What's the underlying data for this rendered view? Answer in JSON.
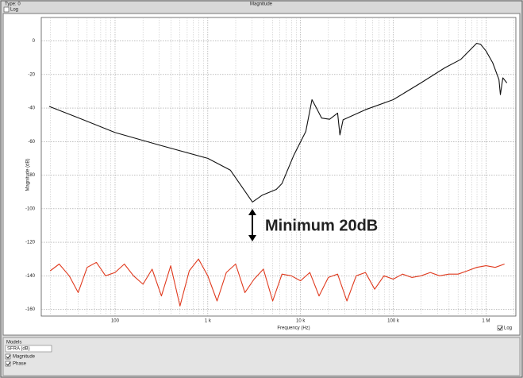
{
  "window": {
    "type_label": "Type: 0",
    "log_top": "Log",
    "log_bottom": "Log"
  },
  "models_panel": {
    "title": "Models",
    "select": "SFRA (dB)",
    "options": [
      "Magnitude",
      "Phase"
    ]
  },
  "chart_data": {
    "type": "line",
    "title": "Magnitude",
    "xlabel": "Frequency (Hz)",
    "ylabel": "Magnitude (dB)",
    "annotation": "Minimum 20dB",
    "xscale": "log",
    "grid": true,
    "xlim": [
      16,
      2100000
    ],
    "ylim": [
      -164,
      14
    ],
    "xticks": [
      100,
      {
        "value": 1000,
        "label": "1 k"
      },
      {
        "value": 10000,
        "label": "10 k"
      },
      {
        "value": 100000,
        "label": "100 k"
      },
      {
        "value": 1000000,
        "label": "1 M"
      }
    ],
    "yticks": [
      0,
      -20,
      -40,
      -60,
      -80,
      -100,
      -120,
      -140,
      -160
    ],
    "series": [
      {
        "name": "Magnitude",
        "color": "#111111",
        "x": [
          19.5,
          41,
          100,
          296,
          1000,
          1750,
          3030,
          3850,
          5490,
          6310,
          8480,
          11400,
          13300,
          14700,
          16900,
          20600,
          25100,
          26600,
          28800,
          50000,
          100000,
          199000,
          360000,
          535000,
          793000,
          875000,
          1000000,
          1180000,
          1380000,
          1430000,
          1520000,
          1680000
        ],
        "values": [
          -39,
          -46,
          -54.6,
          -62,
          -70,
          -77,
          -96,
          -92,
          -88.5,
          -85,
          -68,
          -54,
          -35,
          -39.5,
          -46,
          -46.7,
          -43,
          -56,
          -47,
          -41,
          -35,
          -25,
          -16,
          -11,
          -1.4,
          -2,
          -6,
          -13,
          -23,
          -32,
          -22,
          -25
        ]
      },
      {
        "name": "Phase",
        "color": "#e03a1e",
        "x": [
          20,
          25,
          32,
          40,
          50,
          63,
          79,
          100,
          126,
          158,
          200,
          251,
          316,
          398,
          501,
          631,
          794,
          1000,
          1259,
          1585,
          1995,
          2512,
          3162,
          3981,
          5012,
          6310,
          7943,
          10000,
          12589,
          15849,
          19953,
          25119,
          31623,
          39811,
          50119,
          63096,
          79433,
          100000,
          125893,
          158489,
          199526,
          251189,
          316228,
          398107,
          501187,
          630957,
          794328,
          1000000,
          1258925,
          1584893
        ],
        "values": [
          -137,
          -133,
          -140,
          -150,
          -135,
          -132,
          -140,
          -138,
          -133,
          -140,
          -145,
          -136,
          -152,
          -134,
          -158,
          -137,
          -130,
          -140,
          -155,
          -138,
          -133,
          -150,
          -142,
          -136,
          -155,
          -139,
          -140,
          -143,
          -138,
          -152,
          -141,
          -139,
          -155,
          -140,
          -138,
          -148,
          -140,
          -142,
          -139,
          -141,
          -140,
          -138,
          -140,
          -139,
          -139,
          -137,
          -135,
          -134,
          -135,
          -133
        ]
      }
    ]
  }
}
